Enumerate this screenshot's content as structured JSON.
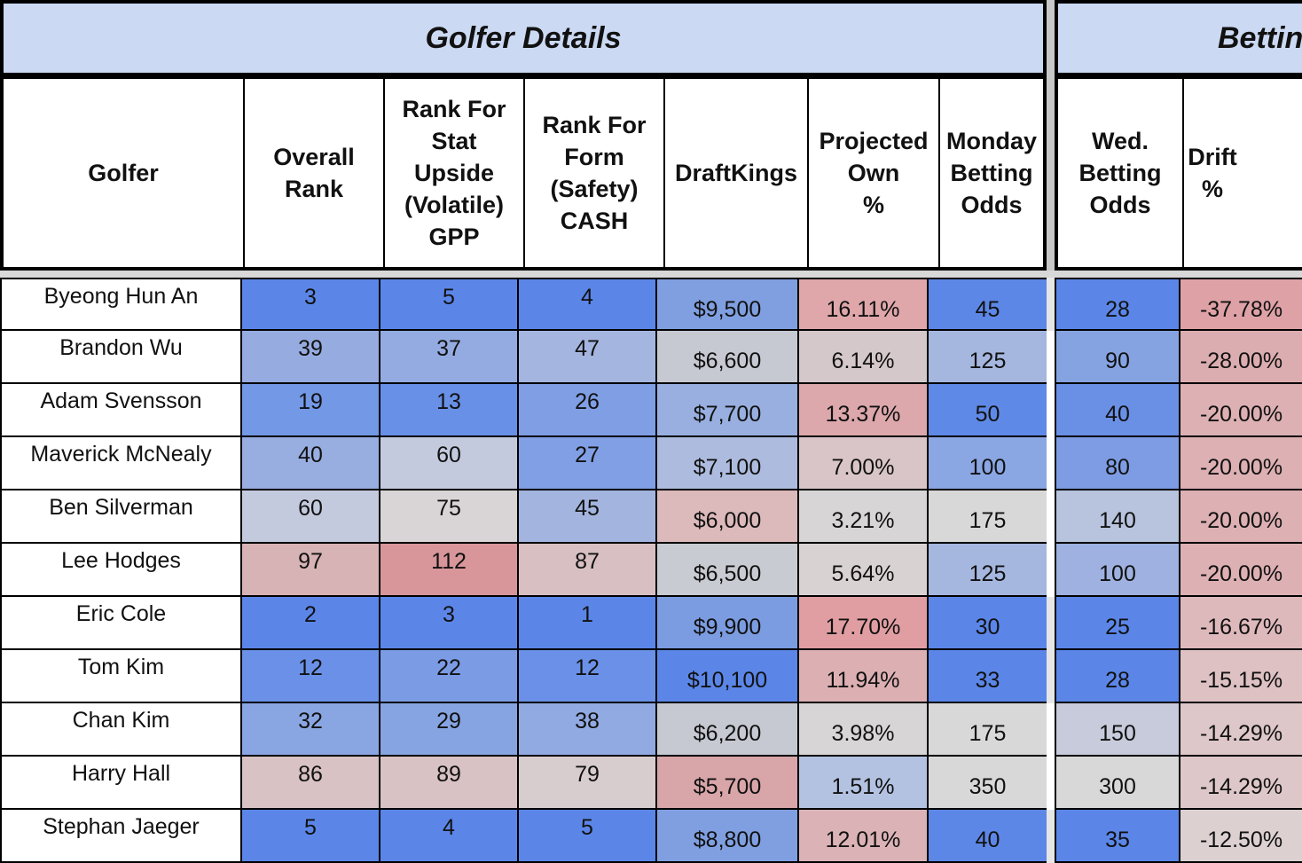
{
  "sections": {
    "golfer_details": "Golfer Details",
    "betting": "Bettin"
  },
  "headers": {
    "golfer": [
      "Golfer"
    ],
    "overall_rank": [
      "Overall",
      "Rank"
    ],
    "stat_upside": [
      "Rank For",
      "Stat",
      "Upside",
      "(Volatile)",
      "GPP"
    ],
    "form_safety": [
      "Rank For",
      "Form",
      "(Safety)",
      "CASH"
    ],
    "draftkings": [
      "DraftKings"
    ],
    "projected_own": [
      "Projected",
      "Own",
      "%"
    ],
    "monday_odds": [
      "Monday",
      "Betting",
      "Odds"
    ],
    "wed_odds": [
      "Wed.",
      "Betting",
      "Odds"
    ],
    "drift": [
      "Drift",
      "%"
    ]
  },
  "rows": [
    {
      "golfer": "Byeong Hun An",
      "overall": "3",
      "stat": "5",
      "form": "4",
      "dk": "$9,500",
      "own": "16.11%",
      "monday": "45",
      "wed": "28",
      "drift": "-37.78%"
    },
    {
      "golfer": "Brandon Wu",
      "overall": "39",
      "stat": "37",
      "form": "47",
      "dk": "$6,600",
      "own": "6.14%",
      "monday": "125",
      "wed": "90",
      "drift": "-28.00%"
    },
    {
      "golfer": "Adam Svensson",
      "overall": "19",
      "stat": "13",
      "form": "26",
      "dk": "$7,700",
      "own": "13.37%",
      "monday": "50",
      "wed": "40",
      "drift": "-20.00%"
    },
    {
      "golfer": "Maverick McNealy",
      "overall": "40",
      "stat": "60",
      "form": "27",
      "dk": "$7,100",
      "own": "7.00%",
      "monday": "100",
      "wed": "80",
      "drift": "-20.00%"
    },
    {
      "golfer": "Ben Silverman",
      "overall": "60",
      "stat": "75",
      "form": "45",
      "dk": "$6,000",
      "own": "3.21%",
      "monday": "175",
      "wed": "140",
      "drift": "-20.00%"
    },
    {
      "golfer": "Lee Hodges",
      "overall": "97",
      "stat": "112",
      "form": "87",
      "dk": "$6,500",
      "own": "5.64%",
      "monday": "125",
      "wed": "100",
      "drift": "-20.00%"
    },
    {
      "golfer": "Eric Cole",
      "overall": "2",
      "stat": "3",
      "form": "1",
      "dk": "$9,900",
      "own": "17.70%",
      "monday": "30",
      "wed": "25",
      "drift": "-16.67%"
    },
    {
      "golfer": "Tom Kim",
      "overall": "12",
      "stat": "22",
      "form": "12",
      "dk": "$10,100",
      "own": "11.94%",
      "monday": "33",
      "wed": "28",
      "drift": "-15.15%"
    },
    {
      "golfer": "Chan Kim",
      "overall": "32",
      "stat": "29",
      "form": "38",
      "dk": "$6,200",
      "own": "3.98%",
      "monday": "175",
      "wed": "150",
      "drift": "-14.29%"
    },
    {
      "golfer": "Harry Hall",
      "overall": "86",
      "stat": "89",
      "form": "79",
      "dk": "$5,700",
      "own": "1.51%",
      "monday": "350",
      "wed": "300",
      "drift": "-14.29%"
    },
    {
      "golfer": "Stephan Jaeger",
      "overall": "5",
      "stat": "4",
      "form": "5",
      "dk": "$8,800",
      "own": "12.01%",
      "monday": "40",
      "wed": "35",
      "drift": "-12.50%"
    }
  ],
  "cell_colors": [
    {
      "overall": "#5b86e8",
      "stat": "#5b86e8",
      "form": "#5b86e8",
      "dk": "#7f9fe0",
      "own": "#dfa7aa",
      "monday": "#5d87e6",
      "wed": "#5b86e8",
      "drift": "#dea2a6"
    },
    {
      "overall": "#96ace0",
      "stat": "#93abe1",
      "form": "#a4b5e0",
      "dk": "#c6c8d2",
      "own": "#d5c8ca",
      "monday": "#a5b6df",
      "wed": "#86a3e1",
      "drift": "#dcadb0"
    },
    {
      "overall": "#7298e6",
      "stat": "#6890e7",
      "form": "#7f9ee4",
      "dk": "#98afe0",
      "own": "#dca8ab",
      "monday": "#5f89e6",
      "wed": "#6a90e6",
      "drift": "#ddb0b3"
    },
    {
      "overall": "#98ade0",
      "stat": "#c4cade",
      "form": "#819fe4",
      "dk": "#adbcde",
      "own": "#d9c5c7",
      "monday": "#8aa6e3",
      "wed": "#7d9ce3",
      "drift": "#ddb0b3"
    },
    {
      "overall": "#c4cade",
      "stat": "#d9d4d5",
      "form": "#a3b5df",
      "dk": "#dcb9bb",
      "own": "#d8d5d6",
      "monday": "#d8d8d8",
      "wed": "#b8c3dd",
      "drift": "#ddb0b3"
    },
    {
      "overall": "#d8b3b5",
      "stat": "#d8969b",
      "form": "#d8c0c2",
      "dk": "#c9cbd2",
      "own": "#d9d2d3",
      "monday": "#a5b6df",
      "wed": "#9eb1e0",
      "drift": "#ddb0b3"
    },
    {
      "overall": "#5b86e8",
      "stat": "#5b86e8",
      "form": "#5b86e8",
      "dk": "#7b9ce1",
      "own": "#e09ea2",
      "monday": "#5b86e8",
      "wed": "#5b86e8",
      "drift": "#deb9bb"
    },
    {
      "overall": "#6a91e7",
      "stat": "#7b9ce5",
      "form": "#6a91e7",
      "dk": "#5b86e8",
      "own": "#dcb0b3",
      "monday": "#5b86e8",
      "wed": "#5b86e8",
      "drift": "#dec1c3"
    },
    {
      "overall": "#8aa6e2",
      "stat": "#87a4e2",
      "form": "#91aae1",
      "dk": "#c6c8d2",
      "own": "#d8d5d6",
      "monday": "#d8d8d8",
      "wed": "#c7cbdb",
      "drift": "#dec7c8"
    },
    {
      "overall": "#d8c2c3",
      "stat": "#d8c2c3",
      "form": "#d8cdce",
      "dk": "#d8a5a8",
      "own": "#b4c2e1",
      "monday": "#d8d8d8",
      "wed": "#d8d8d8",
      "drift": "#dec7c8"
    },
    {
      "overall": "#5b86e8",
      "stat": "#5b86e8",
      "form": "#5b86e8",
      "dk": "#7f9fe0",
      "own": "#dbb3b6",
      "monday": "#5d87e6",
      "wed": "#5b86e8",
      "drift": "#dcd0d1"
    }
  ]
}
